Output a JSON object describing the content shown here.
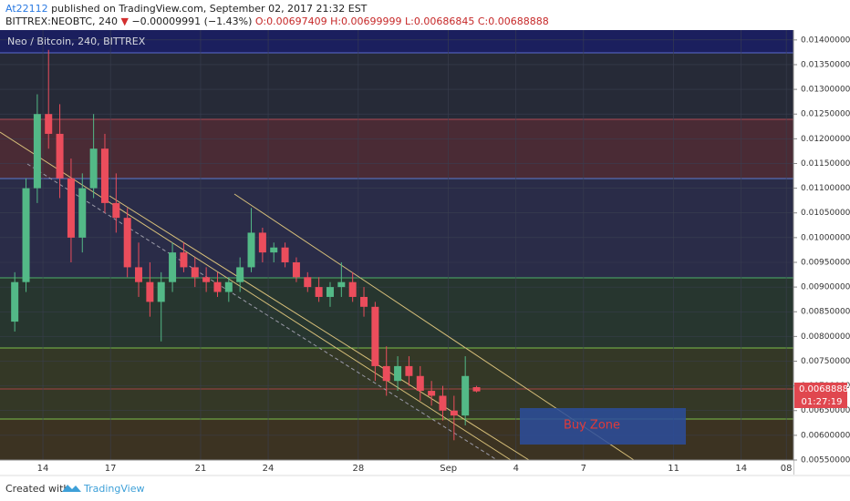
{
  "header": {
    "author": "At22112",
    "published": "published on TradingView.com, September 02, 2017 21:32 EST",
    "symbol": "BITTREX:NEOBTC, 240",
    "change_arrow": "▼",
    "change": "−0.00009991 (−1.43%)",
    "ohlc": "O:0.00697409 H:0.00699999 L:0.00686845 C:0.00688888"
  },
  "footer": {
    "created_with": "Created with",
    "brand": "TradingView"
  },
  "chart_data": {
    "type": "candlestick",
    "title": "Neo / Bitcoin, 240, BITTREX",
    "annotation": "Buy Zone",
    "last_price_label": "0.00688888",
    "countdown": "01:27:19",
    "up_color": "#53b987",
    "down_color": "#eb4d5c",
    "categories": [
      null,
      null,
      null,
      "14",
      null,
      null,
      null,
      null,
      null,
      "17",
      null,
      null,
      null,
      null,
      null,
      null,
      null,
      "21",
      null,
      null,
      null,
      null,
      null,
      "24",
      null,
      null,
      null,
      null,
      null,
      null,
      null,
      "28",
      null,
      null,
      null,
      null,
      null,
      null,
      null,
      "Sep",
      null,
      null,
      null,
      null,
      null,
      "4",
      null,
      null,
      null,
      null,
      null,
      "7",
      null,
      null,
      null,
      null,
      null,
      null,
      null,
      "11",
      null,
      null,
      null,
      null,
      null,
      "14",
      null,
      null,
      null,
      "08"
    ],
    "open": [
      0.0083,
      0.0091,
      0.011,
      0.0125,
      0.0121,
      0.0112,
      0.01,
      0.011,
      0.0118,
      0.0107,
      0.0104,
      0.0094,
      0.0091,
      0.0087,
      0.0091,
      0.0097,
      0.0094,
      0.0092,
      0.0091,
      0.0089,
      0.0091,
      0.0094,
      0.0101,
      0.0097,
      0.0098,
      0.0095,
      0.0092,
      0.009,
      0.0088,
      0.009,
      0.0091,
      0.0088,
      0.0086,
      0.0074,
      0.0071,
      0.0074,
      0.0072,
      0.0069,
      0.0068,
      0.0065,
      0.0064,
      0.00697409,
      null,
      null,
      null,
      null,
      null,
      null,
      null,
      null,
      null,
      null,
      null,
      null,
      null,
      null,
      null,
      null,
      null,
      null,
      null,
      null,
      null,
      null,
      null,
      null,
      null,
      null,
      null,
      null
    ],
    "high": [
      0.0093,
      0.0112,
      0.0129,
      0.0138,
      0.0127,
      0.0116,
      0.0113,
      0.0125,
      0.0121,
      0.0113,
      0.0106,
      0.0099,
      0.0095,
      0.0093,
      0.0099,
      0.0099,
      0.0096,
      0.0094,
      0.0093,
      0.0092,
      0.0096,
      0.0106,
      0.0102,
      0.0099,
      0.0099,
      0.0096,
      0.0093,
      0.0092,
      0.0091,
      0.0095,
      0.0093,
      0.009,
      0.0087,
      0.0078,
      0.0076,
      0.0076,
      0.0074,
      0.0071,
      0.007,
      0.0068,
      0.0076,
      0.00699999,
      null,
      null,
      null,
      null,
      null,
      null,
      null,
      null,
      null,
      null,
      null,
      null,
      null,
      null,
      null,
      null,
      null,
      null,
      null,
      null,
      null,
      null,
      null,
      null,
      null,
      null,
      null,
      null
    ],
    "low": [
      0.0081,
      0.0089,
      0.0107,
      0.0118,
      0.0108,
      0.0095,
      0.0097,
      0.0108,
      0.0105,
      0.0101,
      0.0092,
      0.0088,
      0.0084,
      0.0079,
      0.0089,
      0.0093,
      0.009,
      0.0089,
      0.0088,
      0.0087,
      0.0089,
      0.0093,
      0.0095,
      0.0095,
      0.0094,
      0.0091,
      0.0089,
      0.0087,
      0.0086,
      0.0088,
      0.0087,
      0.0084,
      0.0071,
      0.0068,
      0.0069,
      0.007,
      0.0067,
      0.0066,
      0.0063,
      0.0059,
      0.0062,
      0.00686845,
      null,
      null,
      null,
      null,
      null,
      null,
      null,
      null,
      null,
      null,
      null,
      null,
      null,
      null,
      null,
      null,
      null,
      null,
      null,
      null,
      null,
      null,
      null,
      null,
      null,
      null,
      null,
      null
    ],
    "close": [
      0.0091,
      0.011,
      0.0125,
      0.0121,
      0.0112,
      0.01,
      0.011,
      0.0118,
      0.0107,
      0.0104,
      0.0094,
      0.0091,
      0.0087,
      0.0091,
      0.0097,
      0.0094,
      0.0092,
      0.0091,
      0.0089,
      0.0091,
      0.0094,
      0.0101,
      0.0097,
      0.0098,
      0.0095,
      0.0092,
      0.009,
      0.0088,
      0.009,
      0.0091,
      0.0088,
      0.0086,
      0.0074,
      0.0071,
      0.0074,
      0.0072,
      0.0069,
      0.0068,
      0.0065,
      0.0064,
      0.0072,
      0.00688888,
      null,
      null,
      null,
      null,
      null,
      null,
      null,
      null,
      null,
      null,
      null,
      null,
      null,
      null,
      null,
      null,
      null,
      null,
      null,
      null,
      null,
      null,
      null,
      null,
      null,
      null,
      null,
      null
    ],
    "ylim": [
      0.0055,
      0.0142
    ],
    "yticks": [
      {
        "value": 0.0055,
        "label": "0.00550000"
      },
      {
        "value": 0.006,
        "label": "0.00600000"
      },
      {
        "value": 0.0065,
        "label": "0.00650000"
      },
      {
        "value": 0.007,
        "label": "0.00700000"
      },
      {
        "value": 0.0075,
        "label": "0.00750000"
      },
      {
        "value": 0.008,
        "label": "0.00800000"
      },
      {
        "value": 0.0085,
        "label": "0.00850000"
      },
      {
        "value": 0.009,
        "label": "0.00900000"
      },
      {
        "value": 0.0095,
        "label": "0.00950000"
      },
      {
        "value": 0.01,
        "label": "0.01000000"
      },
      {
        "value": 0.0105,
        "label": "0.01050000"
      },
      {
        "value": 0.011,
        "label": "0.01100000"
      },
      {
        "value": 0.0115,
        "label": "0.01150000"
      },
      {
        "value": 0.012,
        "label": "0.01200000"
      },
      {
        "value": 0.0125,
        "label": "0.01250000"
      },
      {
        "value": 0.013,
        "label": "0.01300000"
      },
      {
        "value": 0.0135,
        "label": "0.01350000"
      },
      {
        "value": 0.014,
        "label": "0.01400000"
      }
    ],
    "grid": true
  }
}
